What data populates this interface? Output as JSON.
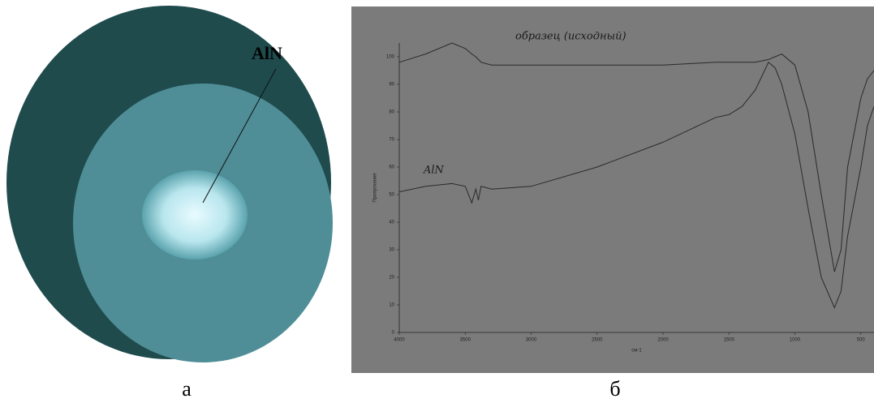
{
  "photo": {
    "label": "AlN",
    "caption": "а"
  },
  "chart_data": {
    "type": "line",
    "caption": "б",
    "y_label": "Пропускание",
    "x_label": "см-1",
    "x": [
      4000,
      3800,
      3600,
      3500,
      3450,
      3420,
      3400,
      3380,
      3300,
      3000,
      2500,
      2000,
      1600,
      1500,
      1400,
      1300,
      1200,
      1150,
      1100,
      1000,
      900,
      800,
      700,
      650,
      600,
      500,
      450,
      400
    ],
    "series": [
      {
        "name": "образец (исходный)",
        "color": "#2a2a2a",
        "values": [
          98,
          101,
          105,
          103,
          101,
          100,
          99,
          98,
          97,
          97,
          97,
          97,
          98,
          98,
          98,
          98,
          99,
          100,
          101,
          97,
          80,
          50,
          22,
          30,
          60,
          85,
          92,
          95
        ]
      },
      {
        "name": "AlN",
        "color": "#2a2a2a",
        "values": [
          51,
          53,
          54,
          53,
          47,
          52,
          48,
          53,
          52,
          53,
          60,
          69,
          78,
          79,
          82,
          88,
          98,
          96,
          90,
          72,
          45,
          20,
          9,
          15,
          35,
          60,
          75,
          82
        ]
      }
    ],
    "xlim": [
      4000,
      400
    ],
    "ylim": [
      0,
      105
    ],
    "xticks": [
      4000,
      3500,
      3000,
      2500,
      2000,
      1500,
      1000,
      500
    ],
    "yticks": [
      0,
      10,
      20,
      30,
      40,
      50,
      60,
      70,
      80,
      90,
      100
    ]
  }
}
